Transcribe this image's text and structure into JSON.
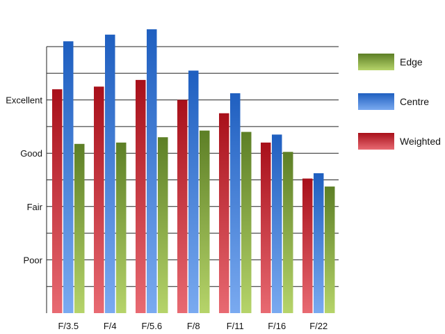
{
  "chart_data": {
    "type": "bar",
    "title": "",
    "xlabel": "",
    "ylabel": "",
    "categories": [
      "F/3.5",
      "F/4",
      "F/5.6",
      "F/8",
      "F/11",
      "F/16",
      "F/22"
    ],
    "series": [
      {
        "name": "Weighted",
        "values": [
          8.4,
          8.5,
          8.75,
          8.0,
          7.5,
          6.4,
          5.05
        ],
        "color_top": "#a8101a",
        "color_bottom": "#e86a72"
      },
      {
        "name": "Centre",
        "values": [
          10.2,
          10.45,
          10.65,
          9.1,
          8.25,
          6.7,
          5.25
        ],
        "color_top": "#1f5fc0",
        "color_bottom": "#7aaaf0"
      },
      {
        "name": "Edge",
        "values": [
          6.35,
          6.4,
          6.6,
          6.85,
          6.8,
          6.05,
          4.75
        ],
        "color_top": "#5d7f26",
        "color_bottom": "#b6d46a"
      }
    ],
    "y_tick_labels": [
      {
        "value": 2,
        "label": "Poor"
      },
      {
        "value": 4,
        "label": "Fair"
      },
      {
        "value": 6,
        "label": "Good"
      },
      {
        "value": 8,
        "label": "Excellent"
      }
    ],
    "ylim": [
      0,
      10
    ],
    "grid": true,
    "legend": {
      "placement": "right",
      "order": [
        "Edge",
        "Centre",
        "Weighted"
      ]
    }
  }
}
